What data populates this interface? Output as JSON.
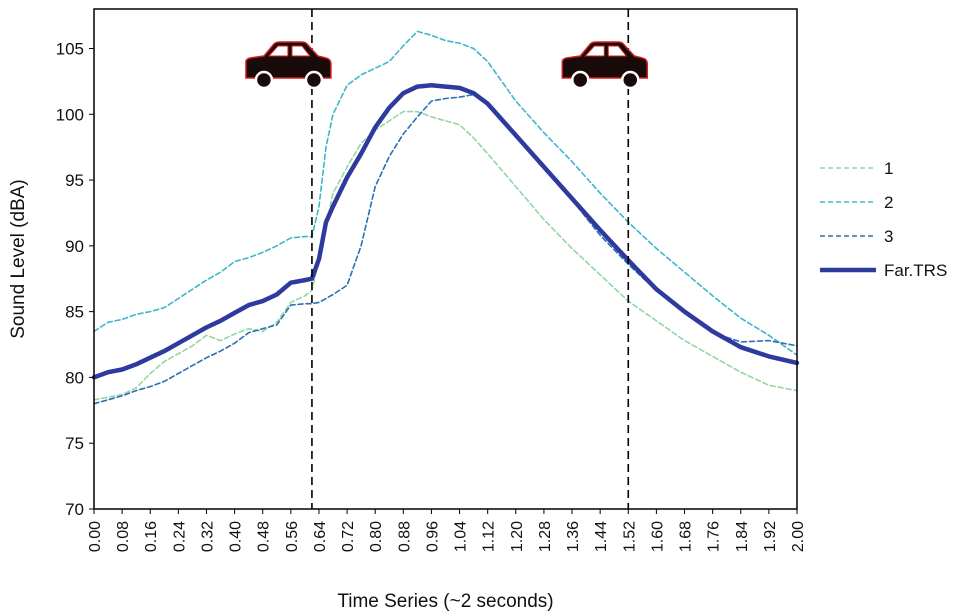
{
  "chart_data": {
    "type": "line",
    "title": "",
    "xlabel": "Time Series (~2 seconds)",
    "ylabel": "Sound Level (dBA)",
    "xlim": [
      0.0,
      2.0
    ],
    "ylim": [
      70,
      108
    ],
    "x_tick_labels": [
      "0.00",
      "0.08",
      "0.16",
      "0.24",
      "0.32",
      "0.40",
      "0.48",
      "0.56",
      "0.64",
      "0.72",
      "0.80",
      "0.88",
      "0.96",
      "1.04",
      "1.12",
      "1.20",
      "1.28",
      "1.36",
      "1.44",
      "1.52",
      "1.60",
      "1.68",
      "1.76",
      "1.84",
      "1.92",
      "2.00"
    ],
    "y_ticks": [
      70,
      75,
      80,
      85,
      90,
      95,
      100,
      105
    ],
    "grid": false,
    "legend_position": "right",
    "vertical_lines": [
      0.62,
      1.52
    ],
    "annotations": [
      "car-icon",
      "car-icon"
    ],
    "series": [
      {
        "name": "1",
        "color": "#93d6a4",
        "style": "dashed",
        "x": [
          0.0,
          0.04,
          0.08,
          0.12,
          0.16,
          0.2,
          0.24,
          0.28,
          0.32,
          0.36,
          0.4,
          0.44,
          0.48,
          0.52,
          0.56,
          0.6,
          0.62,
          0.64,
          0.66,
          0.68,
          0.72,
          0.76,
          0.8,
          0.84,
          0.88,
          0.92,
          0.96,
          1.0,
          1.04,
          1.08,
          1.12,
          1.2,
          1.28,
          1.36,
          1.44,
          1.52,
          1.6,
          1.68,
          1.76,
          1.84,
          1.92,
          2.0
        ],
        "y": [
          78.3,
          78.5,
          78.7,
          79.2,
          80.3,
          81.2,
          81.8,
          82.4,
          83.2,
          82.8,
          83.3,
          83.7,
          83.5,
          84.2,
          85.7,
          86.2,
          86.6,
          89.0,
          91.5,
          94.0,
          96.0,
          97.8,
          98.8,
          99.5,
          100.2,
          100.2,
          99.8,
          99.5,
          99.2,
          98.2,
          97.0,
          94.5,
          92.0,
          89.8,
          87.8,
          85.8,
          84.3,
          82.8,
          81.6,
          80.4,
          79.4,
          79.0
        ]
      },
      {
        "name": "2",
        "color": "#3db7c9",
        "style": "dashed",
        "x": [
          0.0,
          0.04,
          0.08,
          0.12,
          0.16,
          0.2,
          0.24,
          0.28,
          0.32,
          0.36,
          0.4,
          0.44,
          0.48,
          0.52,
          0.56,
          0.6,
          0.62,
          0.64,
          0.66,
          0.68,
          0.72,
          0.76,
          0.8,
          0.84,
          0.88,
          0.92,
          0.96,
          1.0,
          1.04,
          1.08,
          1.12,
          1.2,
          1.28,
          1.36,
          1.44,
          1.52,
          1.6,
          1.68,
          1.76,
          1.84,
          1.92,
          2.0
        ],
        "y": [
          83.5,
          84.2,
          84.4,
          84.8,
          85.0,
          85.3,
          86.0,
          86.7,
          87.4,
          88.0,
          88.8,
          89.1,
          89.5,
          90.0,
          90.6,
          90.7,
          90.7,
          93.0,
          97.5,
          100.0,
          102.2,
          103.0,
          103.5,
          104.0,
          105.2,
          106.3,
          106.0,
          105.6,
          105.4,
          105.0,
          104.0,
          101.0,
          98.6,
          96.4,
          94.0,
          91.8,
          89.8,
          88.0,
          86.2,
          84.5,
          83.2,
          81.7
        ]
      },
      {
        "name": "3",
        "color": "#2b6fb5",
        "style": "dashed",
        "x": [
          0.0,
          0.04,
          0.08,
          0.12,
          0.16,
          0.2,
          0.24,
          0.28,
          0.32,
          0.36,
          0.4,
          0.44,
          0.48,
          0.52,
          0.56,
          0.6,
          0.62,
          0.64,
          0.66,
          0.68,
          0.72,
          0.76,
          0.8,
          0.84,
          0.88,
          0.92,
          0.96,
          1.0,
          1.04,
          1.08,
          1.12,
          1.2,
          1.28,
          1.36,
          1.44,
          1.52,
          1.6,
          1.68,
          1.76,
          1.84,
          1.92,
          2.0
        ],
        "y": [
          78.0,
          78.3,
          78.6,
          79.0,
          79.3,
          79.7,
          80.3,
          80.9,
          81.5,
          82.0,
          82.6,
          83.4,
          83.7,
          84.0,
          85.5,
          85.6,
          85.6,
          85.7,
          86.0,
          86.3,
          87.0,
          90.0,
          94.5,
          96.8,
          98.5,
          99.8,
          101.0,
          101.2,
          101.3,
          101.5,
          100.8,
          98.5,
          96.0,
          93.5,
          90.8,
          88.6,
          86.6,
          85.0,
          83.4,
          82.7,
          82.8,
          82.4
        ]
      },
      {
        "name": "Far.TRS",
        "color": "#2e3a9e",
        "style": "solid",
        "x": [
          0.0,
          0.04,
          0.08,
          0.12,
          0.16,
          0.2,
          0.24,
          0.28,
          0.32,
          0.36,
          0.4,
          0.44,
          0.48,
          0.52,
          0.56,
          0.6,
          0.62,
          0.64,
          0.66,
          0.68,
          0.72,
          0.76,
          0.8,
          0.84,
          0.88,
          0.92,
          0.96,
          1.0,
          1.04,
          1.08,
          1.12,
          1.2,
          1.28,
          1.36,
          1.44,
          1.52,
          1.6,
          1.68,
          1.76,
          1.84,
          1.92,
          2.0
        ],
        "y": [
          80.0,
          80.4,
          80.6,
          81.0,
          81.5,
          82.0,
          82.6,
          83.2,
          83.8,
          84.3,
          84.9,
          85.5,
          85.8,
          86.3,
          87.2,
          87.4,
          87.5,
          89.0,
          91.8,
          93.0,
          95.2,
          97.0,
          99.0,
          100.5,
          101.6,
          102.1,
          102.2,
          102.1,
          102.0,
          101.6,
          100.8,
          98.4,
          96.0,
          93.6,
          91.2,
          88.9,
          86.7,
          85.0,
          83.5,
          82.3,
          81.6,
          81.1
        ]
      }
    ]
  }
}
